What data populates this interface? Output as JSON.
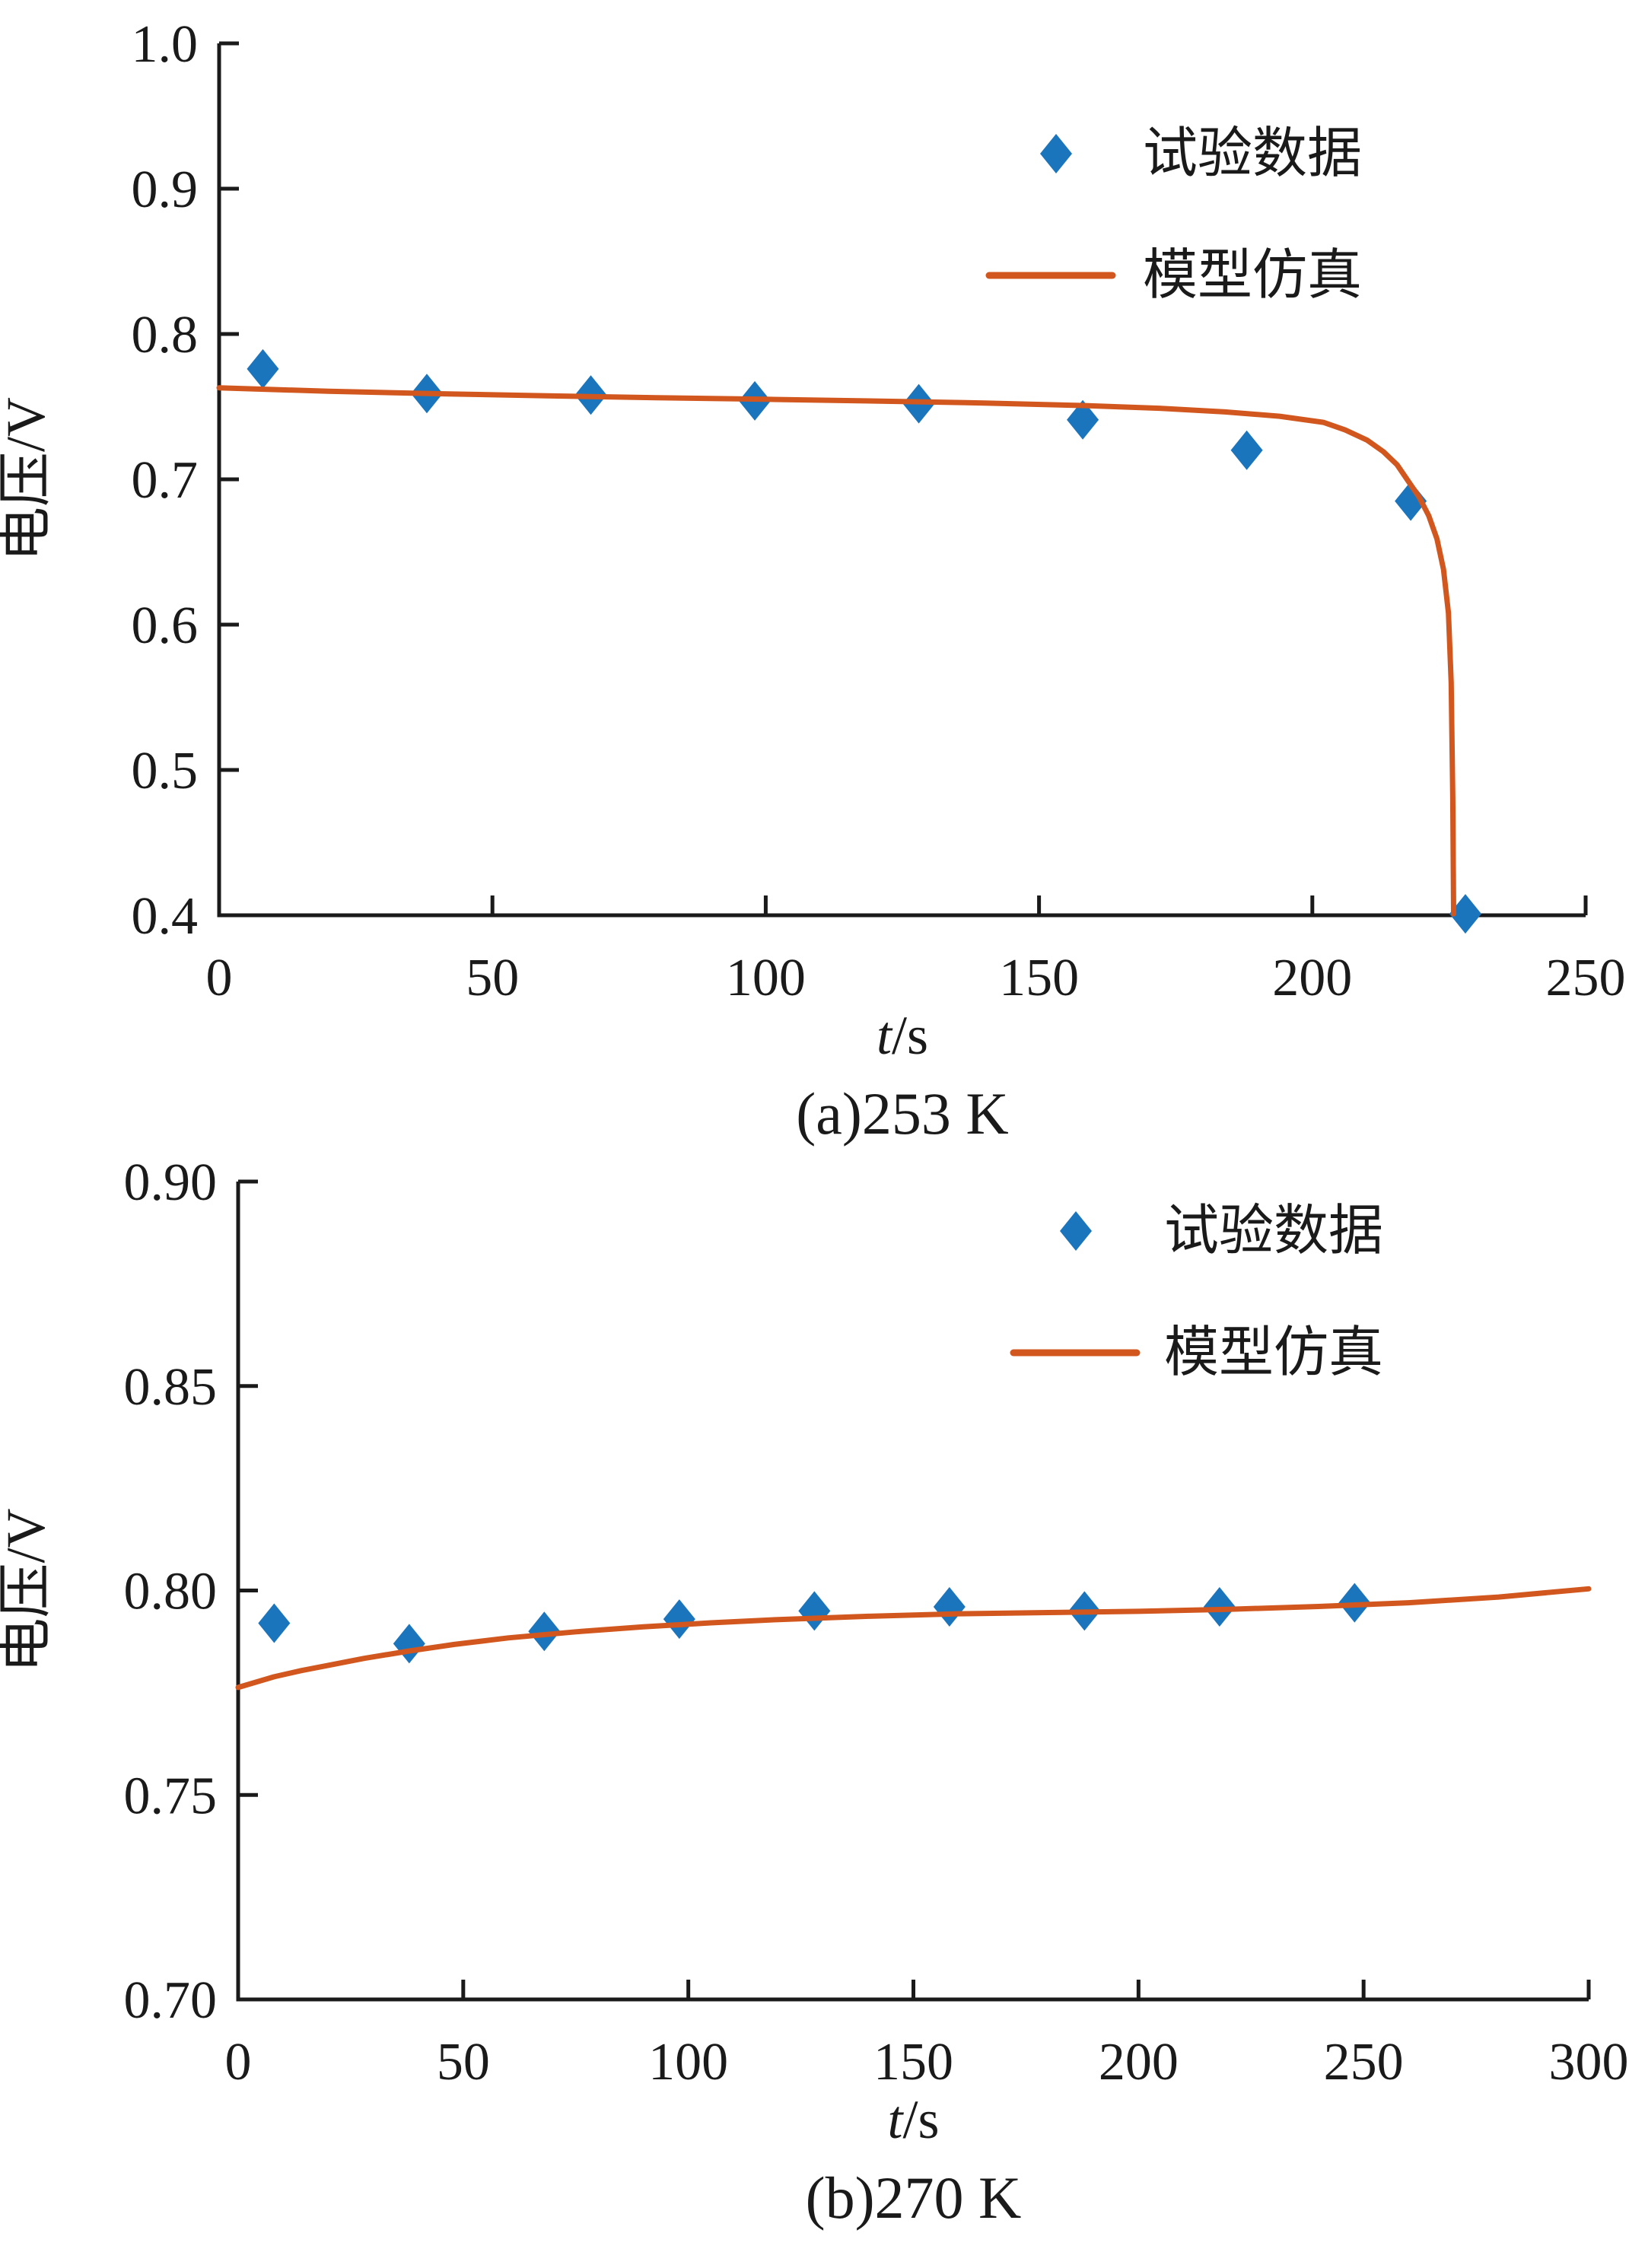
{
  "figure": {
    "background": "#ffffff",
    "axis_color": "#1a1a1a",
    "experimental_color": "#1b75bc",
    "model_color": "#d2571e"
  },
  "chart_data": [
    {
      "type": "scatter",
      "title": "(a)253 K",
      "xlabel": "t/s",
      "ylabel": "电压/V",
      "xlim": [
        0,
        250
      ],
      "ylim": [
        0.4,
        1.0
      ],
      "xticks": [
        0,
        50,
        100,
        150,
        200,
        250
      ],
      "xtick_labels": [
        "0",
        "50",
        "100",
        "150",
        "200",
        "250"
      ],
      "yticks": [
        0.4,
        0.5,
        0.6,
        0.7,
        0.8,
        0.9,
        1.0
      ],
      "ytick_labels": [
        "0.4",
        "0.5",
        "0.6",
        "0.7",
        "0.8",
        "0.9",
        "1.0"
      ],
      "grid": false,
      "legend_position": "upper right inside, no frame",
      "legend": [
        {
          "label": "试验数据",
          "marker": "diamond",
          "color": "#1b75bc"
        },
        {
          "label": "模型仿真",
          "marker": "line",
          "color": "#d2571e"
        }
      ],
      "series": [
        {
          "name": "试验数据",
          "type": "scatter",
          "marker": "diamond",
          "color": "#1b75bc",
          "x": [
            8,
            38,
            68,
            98,
            128,
            158,
            188,
            218,
            228
          ],
          "y": [
            0.776,
            0.759,
            0.758,
            0.754,
            0.752,
            0.741,
            0.72,
            0.685,
            0.401
          ]
        },
        {
          "name": "模型仿真",
          "type": "line",
          "color": "#d2571e",
          "x": [
            0,
            20,
            40,
            60,
            80,
            100,
            120,
            140,
            158,
            172,
            184,
            194,
            202,
            206,
            210,
            213,
            215.5,
            217.5,
            219.5,
            221.3,
            222.8,
            224,
            224.9,
            225.4,
            225.7,
            225.85
          ],
          "y": [
            0.763,
            0.7606,
            0.7589,
            0.7575,
            0.7562,
            0.7551,
            0.7539,
            0.7525,
            0.7508,
            0.7489,
            0.7464,
            0.7434,
            0.7392,
            0.734,
            0.727,
            0.719,
            0.71,
            0.699,
            0.688,
            0.675,
            0.659,
            0.638,
            0.608,
            0.56,
            0.48,
            0.401
          ]
        }
      ]
    },
    {
      "type": "scatter",
      "title": "(b)270 K",
      "xlabel": "t/s",
      "ylabel": "电压/V",
      "xlim": [
        0,
        300
      ],
      "ylim": [
        0.7,
        0.9
      ],
      "xticks": [
        0,
        50,
        100,
        150,
        200,
        250,
        300
      ],
      "xtick_labels": [
        "0",
        "50",
        "100",
        "150",
        "200",
        "250",
        "300"
      ],
      "yticks": [
        0.7,
        0.75,
        0.8,
        0.85,
        0.9
      ],
      "ytick_labels": [
        "0.70",
        "0.75",
        "0.80",
        "0.85",
        "0.90"
      ],
      "grid": false,
      "legend_position": "upper right inside, no frame",
      "legend": [
        {
          "label": "试验数据",
          "marker": "diamond",
          "color": "#1b75bc"
        },
        {
          "label": "模型仿真",
          "marker": "line",
          "color": "#d2571e"
        }
      ],
      "series": [
        {
          "name": "试验数据",
          "type": "scatter",
          "marker": "diamond",
          "color": "#1b75bc",
          "x": [
            8,
            38,
            68,
            98,
            128,
            158,
            188,
            218,
            248
          ],
          "y": [
            0.792,
            0.787,
            0.79,
            0.793,
            0.795,
            0.796,
            0.795,
            0.796,
            0.797
          ]
        },
        {
          "name": "模型仿真",
          "type": "line",
          "color": "#d2571e",
          "x": [
            0,
            4,
            8,
            14,
            20,
            28,
            38,
            48,
            60,
            75,
            90,
            105,
            120,
            140,
            160,
            180,
            200,
            220,
            240,
            260,
            280,
            300
          ],
          "y": [
            0.7763,
            0.7776,
            0.7789,
            0.7804,
            0.7817,
            0.7834,
            0.7852,
            0.7868,
            0.7884,
            0.7899,
            0.7911,
            0.7921,
            0.7929,
            0.7937,
            0.7943,
            0.7946,
            0.7949,
            0.7954,
            0.7961,
            0.797,
            0.7984,
            0.8004
          ]
        }
      ]
    }
  ]
}
